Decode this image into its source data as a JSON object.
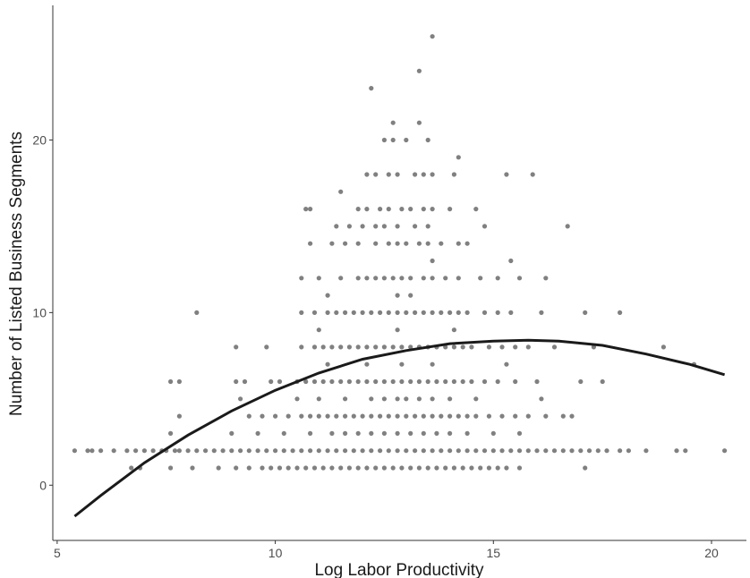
{
  "chart_data": {
    "type": "scatter",
    "xlabel": "Log Labor Productivity",
    "ylabel": "Number of Listed Business Segments",
    "xlim": [
      4.9,
      20.8
    ],
    "ylim": [
      -3.2,
      27.8
    ],
    "x_ticks": [
      5,
      10,
      15,
      20
    ],
    "y_ticks": [
      0,
      10,
      20
    ],
    "grid": false,
    "point_color": "#808080",
    "line_color": "#1a1a1a",
    "scatter_rows": [
      {
        "y": 26,
        "x": [
          13.6
        ]
      },
      {
        "y": 24,
        "x": [
          13.3
        ]
      },
      {
        "y": 23,
        "x": [
          12.2
        ]
      },
      {
        "y": 21,
        "x": [
          12.7,
          13.3
        ]
      },
      {
        "y": 20,
        "x": [
          12.5,
          12.7,
          13.0,
          13.5
        ]
      },
      {
        "y": 19,
        "x": [
          14.2
        ]
      },
      {
        "y": 18,
        "x": [
          12.1,
          12.3,
          12.6,
          12.8,
          13.2,
          13.4,
          13.6,
          14.1,
          15.3,
          15.9
        ]
      },
      {
        "y": 17,
        "x": [
          11.5
        ]
      },
      {
        "y": 16,
        "x": [
          10.7,
          10.8,
          11.9,
          12.1,
          12.4,
          12.6,
          12.9,
          13.1,
          13.4,
          13.6,
          14.0,
          14.6
        ]
      },
      {
        "y": 15,
        "x": [
          11.4,
          11.7,
          12.0,
          12.3,
          12.5,
          12.8,
          13.2,
          13.5,
          14.8,
          16.7
        ]
      },
      {
        "y": 14,
        "x": [
          10.8,
          11.3,
          11.6,
          11.9,
          12.3,
          12.6,
          12.8,
          13.0,
          13.3,
          13.5,
          13.8,
          14.2,
          14.4
        ]
      },
      {
        "y": 13,
        "x": [
          13.6,
          15.4
        ]
      },
      {
        "y": 12,
        "x": [
          10.6,
          11.0,
          11.5,
          11.9,
          12.1,
          12.3,
          12.5,
          12.7,
          12.9,
          13.1,
          13.4,
          13.6,
          13.9,
          14.2,
          14.7,
          15.1,
          15.6,
          16.2
        ]
      },
      {
        "y": 11,
        "x": [
          11.2,
          12.8,
          13.1
        ]
      },
      {
        "y": 10,
        "x": [
          8.2,
          10.6,
          10.9,
          11.2,
          11.4,
          11.6,
          11.8,
          12.0,
          12.2,
          12.4,
          12.6,
          12.8,
          13.0,
          13.2,
          13.4,
          13.6,
          13.8,
          14.0,
          14.2,
          14.4,
          14.8,
          15.1,
          15.4,
          16.1,
          17.1,
          17.9
        ]
      },
      {
        "y": 9,
        "x": [
          11.0,
          12.8,
          14.1
        ]
      },
      {
        "y": 8,
        "x": [
          9.1,
          9.8,
          10.6,
          10.9,
          11.1,
          11.3,
          11.5,
          11.7,
          11.9,
          12.1,
          12.3,
          12.5,
          12.7,
          12.9,
          13.1,
          13.3,
          13.5,
          13.7,
          13.9,
          14.1,
          14.3,
          14.5,
          14.9,
          15.2,
          15.5,
          15.8,
          16.4,
          17.3,
          18.9
        ]
      },
      {
        "y": 7,
        "x": [
          11.2,
          12.1,
          12.9,
          13.6,
          15.3,
          19.6
        ]
      },
      {
        "y": 6,
        "x": [
          7.6,
          7.8,
          9.1,
          9.3,
          9.9,
          10.1,
          10.5,
          10.7,
          10.9,
          11.1,
          11.3,
          11.5,
          11.7,
          11.9,
          12.1,
          12.3,
          12.5,
          12.7,
          12.9,
          13.1,
          13.3,
          13.5,
          13.7,
          13.9,
          14.1,
          14.3,
          14.5,
          14.8,
          15.1,
          15.5,
          16.0,
          17.0,
          17.5
        ]
      },
      {
        "y": 5,
        "x": [
          9.2,
          10.5,
          11.0,
          11.6,
          12.2,
          12.5,
          12.8,
          13.0,
          13.3,
          13.6,
          14.0,
          14.6,
          16.1
        ]
      },
      {
        "y": 4,
        "x": [
          7.8,
          9.4,
          9.7,
          10.0,
          10.3,
          10.6,
          10.8,
          11.0,
          11.2,
          11.4,
          11.6,
          11.8,
          12.0,
          12.2,
          12.4,
          12.6,
          12.8,
          13.0,
          13.2,
          13.4,
          13.6,
          13.8,
          14.0,
          14.2,
          14.4,
          14.6,
          14.9,
          15.2,
          15.5,
          15.8,
          16.2,
          16.6,
          16.8
        ]
      },
      {
        "y": 3,
        "x": [
          7.6,
          9.0,
          9.6,
          10.2,
          10.8,
          11.3,
          11.6,
          11.9,
          12.2,
          12.5,
          12.8,
          13.1,
          13.4,
          13.7,
          14.0,
          14.4,
          15.0,
          15.6
        ]
      },
      {
        "y": 2,
        "x": [
          5.4,
          5.7,
          5.8,
          6.0,
          6.3,
          6.6,
          6.8,
          7.0,
          7.2,
          7.4,
          7.5,
          7.7,
          7.8,
          8.0,
          8.2,
          8.4,
          8.6,
          8.8,
          9.0,
          9.2,
          9.4,
          9.6,
          9.8,
          10.0,
          10.2,
          10.4,
          10.6,
          10.8,
          11.0,
          11.2,
          11.4,
          11.6,
          11.8,
          12.0,
          12.2,
          12.4,
          12.6,
          12.8,
          13.0,
          13.2,
          13.4,
          13.6,
          13.8,
          14.0,
          14.2,
          14.4,
          14.6,
          14.8,
          15.0,
          15.2,
          15.4,
          15.6,
          15.8,
          16.0,
          16.2,
          16.4,
          16.6,
          16.8,
          17.0,
          17.2,
          17.4,
          17.6,
          17.9,
          18.1,
          18.5,
          19.2,
          19.4,
          20.3
        ]
      },
      {
        "y": 1,
        "x": [
          6.7,
          6.9,
          7.6,
          8.1,
          8.7,
          9.1,
          9.4,
          9.7,
          9.9,
          10.1,
          10.3,
          10.5,
          10.7,
          10.9,
          11.1,
          11.3,
          11.5,
          11.7,
          11.9,
          12.1,
          12.3,
          12.5,
          12.7,
          12.9,
          13.1,
          13.3,
          13.5,
          13.7,
          13.9,
          14.1,
          14.3,
          14.5,
          14.7,
          14.9,
          15.1,
          15.3,
          15.6,
          17.1
        ]
      }
    ],
    "fit_line": {
      "x": [
        5.4,
        6.0,
        7.0,
        8.0,
        9.0,
        10.0,
        11.0,
        12.0,
        13.0,
        14.0,
        15.0,
        15.8,
        16.5,
        17.5,
        18.5,
        19.5,
        20.3
      ],
      "y": [
        -1.8,
        -0.6,
        1.3,
        2.9,
        4.3,
        5.5,
        6.5,
        7.3,
        7.8,
        8.2,
        8.35,
        8.4,
        8.35,
        8.1,
        7.6,
        7.0,
        6.4
      ]
    }
  }
}
